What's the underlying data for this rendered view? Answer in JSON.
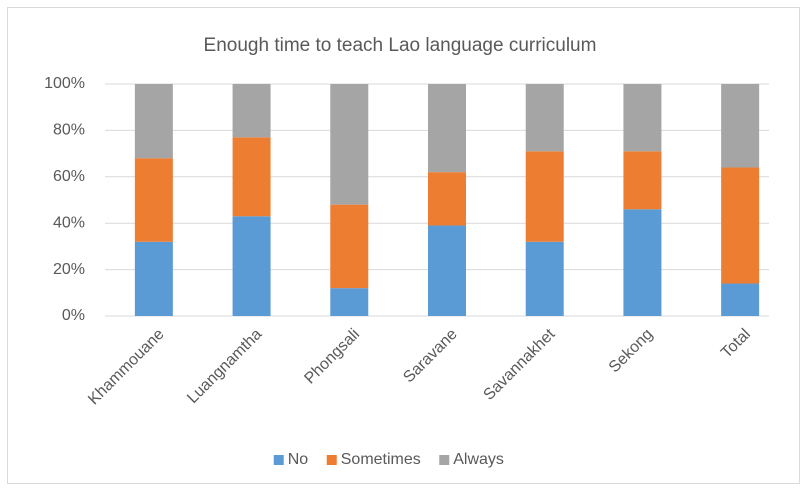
{
  "chart_data": {
    "type": "stacked_bar",
    "title": "Enough time to teach Lao language curriculum",
    "categories": [
      "Khammouane",
      "Luangnamtha",
      "Phongsali",
      "Saravane",
      "Savannakhet",
      "Sekong",
      "Total"
    ],
    "series": [
      {
        "name": "No",
        "color": "#5b9bd5",
        "values": [
          32,
          43,
          12,
          39,
          32,
          46,
          14
        ]
      },
      {
        "name": "Sometimes",
        "color": "#ed7d31",
        "values": [
          36,
          34,
          36,
          23,
          39,
          25,
          50
        ]
      },
      {
        "name": "Always",
        "color": "#a5a5a5",
        "values": [
          32,
          23,
          52,
          38,
          29,
          29,
          36
        ]
      }
    ],
    "ylim": [
      0,
      100
    ],
    "yticks": [
      {
        "value": 0,
        "label": "0%"
      },
      {
        "value": 20,
        "label": "20%"
      },
      {
        "value": 40,
        "label": "40%"
      },
      {
        "value": 60,
        "label": "60%"
      },
      {
        "value": 80,
        "label": "80%"
      },
      {
        "value": 100,
        "label": "100%"
      }
    ],
    "grid": true,
    "legend": "bottom"
  }
}
